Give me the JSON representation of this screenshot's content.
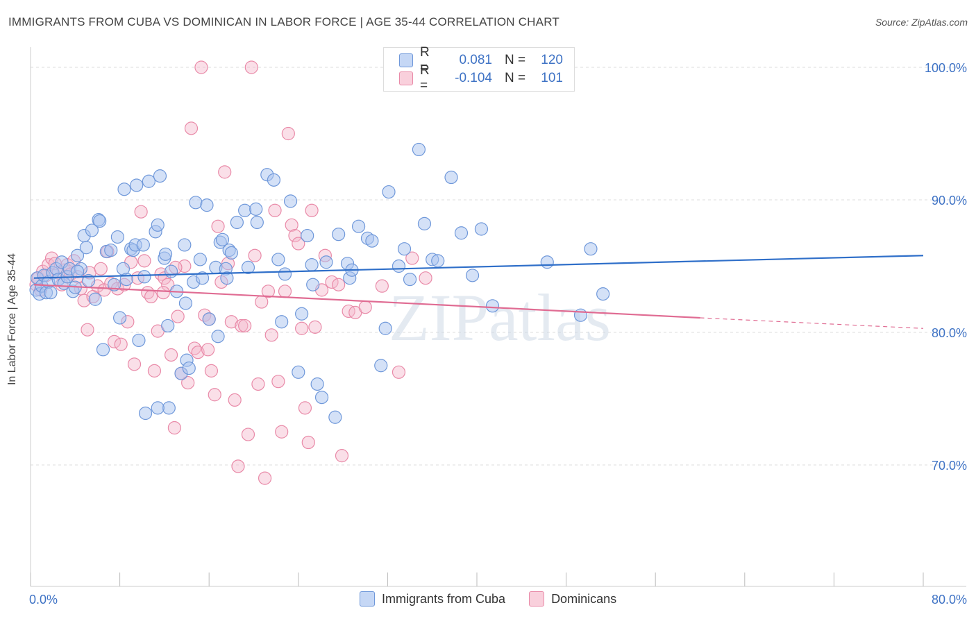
{
  "title": "IMMIGRANTS FROM CUBA VS DOMINICAN IN LABOR FORCE | AGE 35-44 CORRELATION CHART",
  "source": "Source: ZipAtlas.com",
  "watermark": "ZIPatlas",
  "legend_top": {
    "rows": [
      {
        "r_label": "R =",
        "r_value": "0.081",
        "n_label": "N =",
        "n_value": "120",
        "color": "#a9c4ef"
      },
      {
        "r_label": "R =",
        "r_value": "-0.104",
        "n_label": "N =",
        "n_value": "101",
        "color": "#f5b8cb"
      }
    ]
  },
  "colors": {
    "blue_fill": "#a9c4ef",
    "blue_stroke": "#6f98da",
    "blue_line": "#2f6fc9",
    "pink_fill": "#f5b8cb",
    "pink_stroke": "#e98aa8",
    "pink_line": "#e06c93",
    "axis_text": "#3f73c5",
    "grid": "#dddddd"
  },
  "chart_data": {
    "type": "scatter",
    "title": "IMMIGRANTS FROM CUBA VS DOMINICAN IN LABOR FORCE | AGE 35-44 CORRELATION CHART",
    "xlabel": "",
    "ylabel": "In Labor Force | Age 35-44",
    "xlim": [
      0,
      80
    ],
    "ylim": [
      60,
      102
    ],
    "x_tick_labels": [
      "0.0%",
      "80.0%"
    ],
    "y_ticks": [
      70,
      80,
      90,
      100
    ],
    "y_tick_labels": [
      "70.0%",
      "80.0%",
      "90.0%",
      "100.0%"
    ],
    "grid": true,
    "legend_position": "bottom-center",
    "series": [
      {
        "name": "Immigrants from Cuba",
        "r": 0.081,
        "n": 120,
        "trend": {
          "x": [
            0.3,
            80
          ],
          "y": [
            84.1,
            85.8
          ]
        },
        "points": [
          [
            0.5,
            83.2
          ],
          [
            0.6,
            84.1
          ],
          [
            0.8,
            82.9
          ],
          [
            1.0,
            83.5
          ],
          [
            1.2,
            84.3
          ],
          [
            1.4,
            83.0
          ],
          [
            1.6,
            83.8
          ],
          [
            1.8,
            83.0
          ],
          [
            2.0,
            84.5
          ],
          [
            2.3,
            84.8
          ],
          [
            2.5,
            84.0
          ],
          [
            2.8,
            85.3
          ],
          [
            3.0,
            83.7
          ],
          [
            3.3,
            84.2
          ],
          [
            3.5,
            84.8
          ],
          [
            3.8,
            83.1
          ],
          [
            4.0,
            83.4
          ],
          [
            4.2,
            85.8
          ],
          [
            4.5,
            84.8
          ],
          [
            4.8,
            87.3
          ],
          [
            5.0,
            86.4
          ],
          [
            5.2,
            83.9
          ],
          [
            5.5,
            87.7
          ],
          [
            5.8,
            82.5
          ],
          [
            6.1,
            88.5
          ],
          [
            6.2,
            88.4
          ],
          [
            6.5,
            78.7
          ],
          [
            6.8,
            86.1
          ],
          [
            7.2,
            86.2
          ],
          [
            7.5,
            83.6
          ],
          [
            7.8,
            87.2
          ],
          [
            8.0,
            81.1
          ],
          [
            8.3,
            84.8
          ],
          [
            8.4,
            90.8
          ],
          [
            8.6,
            84.0
          ],
          [
            9.0,
            86.3
          ],
          [
            9.2,
            86.2
          ],
          [
            9.4,
            86.6
          ],
          [
            9.5,
            91.1
          ],
          [
            9.7,
            79.4
          ],
          [
            10.1,
            86.6
          ],
          [
            10.3,
            73.9
          ],
          [
            10.6,
            91.4
          ],
          [
            11.2,
            87.6
          ],
          [
            11.4,
            88.1
          ],
          [
            11.6,
            91.8
          ],
          [
            12.0,
            85.6
          ],
          [
            12.1,
            85.9
          ],
          [
            12.3,
            80.5
          ],
          [
            12.4,
            74.3
          ],
          [
            12.6,
            84.6
          ],
          [
            13.1,
            83.1
          ],
          [
            13.5,
            76.9
          ],
          [
            13.8,
            86.6
          ],
          [
            13.9,
            82.2
          ],
          [
            14.0,
            77.9
          ],
          [
            14.6,
            83.8
          ],
          [
            14.8,
            89.8
          ],
          [
            15.2,
            85.5
          ],
          [
            15.4,
            84.1
          ],
          [
            15.8,
            89.6
          ],
          [
            16.0,
            81.0
          ],
          [
            16.6,
            84.9
          ],
          [
            16.8,
            79.7
          ],
          [
            17.0,
            86.8
          ],
          [
            17.2,
            87.0
          ],
          [
            17.5,
            84.8
          ],
          [
            17.6,
            84.1
          ],
          [
            17.8,
            86.2
          ],
          [
            18.5,
            88.3
          ],
          [
            19.2,
            89.2
          ],
          [
            19.5,
            84.9
          ],
          [
            20.2,
            89.3
          ],
          [
            20.3,
            88.3
          ],
          [
            21.2,
            91.9
          ],
          [
            21.8,
            91.5
          ],
          [
            22.2,
            85.5
          ],
          [
            22.5,
            80.8
          ],
          [
            22.8,
            84.4
          ],
          [
            23.3,
            89.9
          ],
          [
            24.0,
            77.0
          ],
          [
            24.3,
            81.4
          ],
          [
            24.8,
            87.3
          ],
          [
            25.2,
            85.1
          ],
          [
            25.3,
            83.6
          ],
          [
            25.7,
            76.1
          ],
          [
            26.1,
            75.1
          ],
          [
            26.5,
            85.3
          ],
          [
            27.3,
            73.6
          ],
          [
            27.6,
            87.4
          ],
          [
            28.4,
            85.2
          ],
          [
            28.6,
            84.1
          ],
          [
            28.8,
            84.7
          ],
          [
            29.4,
            88.0
          ],
          [
            30.2,
            87.1
          ],
          [
            30.6,
            86.9
          ],
          [
            31.4,
            77.5
          ],
          [
            31.8,
            80.3
          ],
          [
            32.1,
            90.6
          ],
          [
            33.0,
            85.0
          ],
          [
            33.5,
            86.3
          ],
          [
            34.0,
            84.0
          ],
          [
            34.8,
            93.8
          ],
          [
            35.3,
            88.2
          ],
          [
            36.0,
            85.5
          ],
          [
            36.5,
            85.4
          ],
          [
            37.7,
            91.7
          ],
          [
            38.6,
            87.5
          ],
          [
            39.6,
            84.3
          ],
          [
            40.4,
            87.8
          ],
          [
            41.4,
            82.0
          ],
          [
            46.3,
            85.3
          ],
          [
            49.3,
            81.3
          ],
          [
            50.2,
            86.3
          ],
          [
            51.3,
            82.9
          ],
          [
            4.2,
            84.6
          ],
          [
            10.2,
            84.2
          ],
          [
            11.4,
            74.3
          ],
          [
            14.2,
            77.3
          ],
          [
            18.0,
            86.0
          ]
        ]
      },
      {
        "name": "Dominicans",
        "r": -0.104,
        "n": 101,
        "trend": {
          "x": [
            0.3,
            60
          ],
          "y": [
            83.6,
            81.1
          ]
        },
        "trend_dashed": {
          "x": [
            60,
            80
          ],
          "y": [
            81.1,
            80.3
          ]
        },
        "points": [
          [
            0.5,
            83.6
          ],
          [
            0.7,
            84.1
          ],
          [
            0.9,
            83.2
          ],
          [
            1.1,
            84.6
          ],
          [
            1.4,
            84.3
          ],
          [
            1.6,
            85.1
          ],
          [
            1.9,
            85.6
          ],
          [
            2.2,
            85.2
          ],
          [
            2.5,
            84.5
          ],
          [
            2.8,
            83.6
          ],
          [
            3.0,
            84.7
          ],
          [
            3.3,
            85.1
          ],
          [
            3.6,
            84.4
          ],
          [
            3.9,
            85.4
          ],
          [
            4.2,
            84.2
          ],
          [
            4.5,
            83.3
          ],
          [
            4.8,
            82.4
          ],
          [
            5.1,
            80.2
          ],
          [
            5.3,
            84.5
          ],
          [
            5.6,
            82.7
          ],
          [
            6.0,
            83.5
          ],
          [
            6.3,
            84.8
          ],
          [
            6.6,
            83.2
          ],
          [
            6.9,
            86.1
          ],
          [
            7.2,
            83.7
          ],
          [
            7.5,
            79.3
          ],
          [
            7.8,
            83.3
          ],
          [
            8.1,
            79.1
          ],
          [
            8.4,
            83.6
          ],
          [
            8.7,
            80.8
          ],
          [
            9.0,
            85.3
          ],
          [
            9.3,
            77.6
          ],
          [
            9.6,
            84.1
          ],
          [
            9.9,
            89.1
          ],
          [
            10.2,
            85.4
          ],
          [
            10.5,
            83.0
          ],
          [
            10.8,
            82.7
          ],
          [
            11.1,
            77.1
          ],
          [
            11.4,
            80.1
          ],
          [
            11.7,
            84.4
          ],
          [
            12.0,
            84.1
          ],
          [
            12.3,
            83.6
          ],
          [
            12.6,
            78.3
          ],
          [
            12.9,
            72.8
          ],
          [
            13.2,
            81.2
          ],
          [
            13.5,
            76.9
          ],
          [
            13.8,
            85.0
          ],
          [
            14.1,
            76.2
          ],
          [
            14.4,
            95.4
          ],
          [
            14.7,
            78.8
          ],
          [
            15.0,
            78.5
          ],
          [
            15.3,
            100.0
          ],
          [
            15.6,
            81.3
          ],
          [
            15.9,
            78.7
          ],
          [
            16.2,
            77.1
          ],
          [
            16.5,
            75.3
          ],
          [
            16.8,
            88.0
          ],
          [
            17.1,
            83.8
          ],
          [
            17.4,
            92.1
          ],
          [
            17.7,
            85.2
          ],
          [
            18.0,
            80.8
          ],
          [
            18.3,
            74.9
          ],
          [
            18.6,
            69.9
          ],
          [
            18.9,
            80.5
          ],
          [
            19.2,
            80.5
          ],
          [
            19.5,
            72.3
          ],
          [
            19.8,
            100.0
          ],
          [
            20.1,
            85.8
          ],
          [
            20.4,
            76.1
          ],
          [
            20.7,
            82.3
          ],
          [
            21.0,
            69.0
          ],
          [
            21.3,
            83.1
          ],
          [
            21.6,
            79.8
          ],
          [
            21.9,
            89.2
          ],
          [
            22.2,
            76.3
          ],
          [
            22.5,
            72.5
          ],
          [
            22.8,
            83.1
          ],
          [
            23.1,
            95.0
          ],
          [
            23.4,
            88.1
          ],
          [
            23.7,
            87.3
          ],
          [
            24.0,
            86.7
          ],
          [
            24.3,
            80.3
          ],
          [
            24.6,
            74.3
          ],
          [
            24.9,
            71.7
          ],
          [
            25.2,
            89.2
          ],
          [
            25.5,
            80.4
          ],
          [
            26.1,
            83.2
          ],
          [
            26.4,
            85.8
          ],
          [
            27.0,
            83.8
          ],
          [
            27.6,
            83.6
          ],
          [
            27.9,
            70.7
          ],
          [
            28.5,
            81.6
          ],
          [
            29.1,
            81.5
          ],
          [
            30.0,
            81.9
          ],
          [
            31.5,
            83.5
          ],
          [
            33.0,
            77.0
          ],
          [
            34.2,
            85.6
          ],
          [
            35.4,
            84.1
          ],
          [
            13.0,
            84.9
          ],
          [
            16.0,
            81.0
          ],
          [
            11.9,
            83.0
          ]
        ]
      }
    ]
  },
  "bottom_legend": [
    {
      "label": "Immigrants from Cuba",
      "color": "#a9c4ef"
    },
    {
      "label": "Dominicans",
      "color": "#f5b8cb"
    }
  ]
}
